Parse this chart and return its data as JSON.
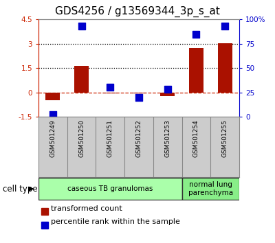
{
  "title": "GDS4256 / g13569344_3p_s_at",
  "samples": [
    "GSM501249",
    "GSM501250",
    "GSM501251",
    "GSM501252",
    "GSM501253",
    "GSM501254",
    "GSM501255"
  ],
  "transformed_count": [
    -0.5,
    1.65,
    -0.05,
    -0.07,
    -0.22,
    2.75,
    3.02
  ],
  "percentile_rank": [
    2,
    93,
    30,
    20,
    28,
    85,
    93
  ],
  "left_ylim": [
    -1.5,
    4.5
  ],
  "right_ylim": [
    0,
    100
  ],
  "left_yticks": [
    -1.5,
    0,
    1.5,
    3,
    4.5
  ],
  "right_yticks": [
    0,
    25,
    50,
    75,
    100
  ],
  "right_yticklabels": [
    "0",
    "25",
    "50",
    "75",
    "100%"
  ],
  "hlines": [
    0,
    1.5,
    3.0
  ],
  "hline_styles": [
    "dashed",
    "dotted",
    "dotted"
  ],
  "hline_colors": [
    "#cc2200",
    "#000000",
    "#000000"
  ],
  "bar_color": "#aa1100",
  "scatter_color": "#0000cc",
  "cell_type_groups": [
    {
      "label": "caseous TB granulomas",
      "start": 0,
      "end": 4,
      "color": "#aaffaa"
    },
    {
      "label": "normal lung\nparenchyma",
      "start": 5,
      "end": 6,
      "color": "#88ee88"
    }
  ],
  "cell_type_label": "cell type",
  "legend_bar_label": "transformed count",
  "legend_scatter_label": "percentile rank within the sample",
  "bar_width": 0.5,
  "scatter_size": 45,
  "title_fontsize": 11,
  "tick_fontsize": 7.5,
  "label_fontsize": 8,
  "left_axis_color": "#cc2200",
  "right_axis_color": "#0000cc",
  "sample_label_bg": "#cccccc",
  "spine_color": "#888888"
}
